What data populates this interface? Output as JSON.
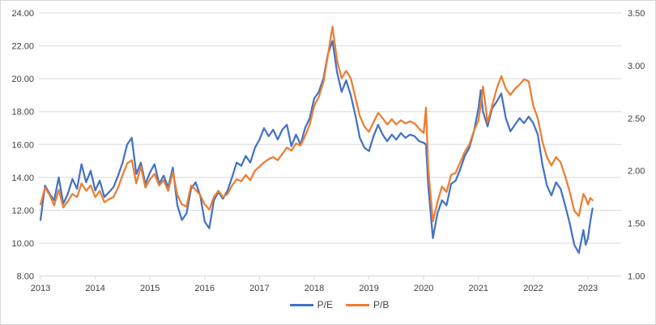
{
  "chart_data": {
    "type": "line",
    "title": "",
    "grid": true,
    "legend_position": "bottom",
    "x_axis": {
      "labels": [
        "2013",
        "2014",
        "2015",
        "2016",
        "2017",
        "2018",
        "2019",
        "2020",
        "2021",
        "2022",
        "2023"
      ]
    },
    "left_axis": {
      "min": 8,
      "max": 24,
      "step": 2,
      "labels": [
        "24.00",
        "22.00",
        "20.00",
        "18.00",
        "16.00",
        "14.00",
        "12.00",
        "10.00",
        "8.00"
      ]
    },
    "right_axis": {
      "min": 1.0,
      "max": 3.5,
      "step": 0.5,
      "labels": [
        "3.50",
        "3.00",
        "2.50",
        "2.00",
        "1.50",
        "1.00"
      ]
    },
    "x": [
      2013.0,
      2013.083,
      2013.167,
      2013.25,
      2013.333,
      2013.417,
      2013.5,
      2013.583,
      2013.667,
      2013.75,
      2013.833,
      2013.917,
      2014.0,
      2014.083,
      2014.167,
      2014.25,
      2014.333,
      2014.417,
      2014.5,
      2014.583,
      2014.667,
      2014.75,
      2014.833,
      2014.917,
      2015.0,
      2015.083,
      2015.167,
      2015.25,
      2015.333,
      2015.417,
      2015.5,
      2015.583,
      2015.667,
      2015.75,
      2015.833,
      2015.917,
      2016.0,
      2016.083,
      2016.167,
      2016.25,
      2016.333,
      2016.417,
      2016.5,
      2016.583,
      2016.667,
      2016.75,
      2016.833,
      2016.917,
      2017.0,
      2017.083,
      2017.167,
      2017.25,
      2017.333,
      2017.417,
      2017.5,
      2017.583,
      2017.667,
      2017.75,
      2017.833,
      2017.917,
      2018.0,
      2018.083,
      2018.167,
      2018.25,
      2018.333,
      2018.417,
      2018.5,
      2018.583,
      2018.667,
      2018.75,
      2018.833,
      2018.917,
      2019.0,
      2019.083,
      2019.167,
      2019.25,
      2019.333,
      2019.417,
      2019.5,
      2019.583,
      2019.667,
      2019.75,
      2019.833,
      2019.917,
      2020.0,
      2020.042,
      2020.083,
      2020.167,
      2020.25,
      2020.333,
      2020.417,
      2020.5,
      2020.583,
      2020.667,
      2020.75,
      2020.833,
      2020.917,
      2021.0,
      2021.042,
      2021.083,
      2021.167,
      2021.25,
      2021.333,
      2021.417,
      2021.5,
      2021.583,
      2021.667,
      2021.75,
      2021.833,
      2021.917,
      2022.0,
      2022.083,
      2022.167,
      2022.25,
      2022.333,
      2022.417,
      2022.5,
      2022.583,
      2022.667,
      2022.75,
      2022.833,
      2022.917,
      2022.958,
      2023.0,
      2023.042,
      2023.083
    ],
    "series": [
      {
        "name": "P/E",
        "axis": "left",
        "color": "#4472C4",
        "values": [
          11.4,
          13.5,
          13.0,
          12.6,
          14.0,
          12.4,
          13.0,
          13.9,
          13.3,
          14.8,
          13.7,
          14.4,
          13.2,
          13.8,
          12.8,
          13.1,
          13.4,
          14.1,
          14.9,
          16.0,
          16.4,
          14.2,
          14.9,
          13.6,
          14.3,
          14.8,
          13.6,
          14.1,
          13.4,
          14.6,
          12.3,
          11.4,
          11.8,
          13.3,
          13.7,
          12.9,
          11.3,
          10.9,
          12.6,
          13.1,
          12.7,
          13.2,
          14.0,
          14.9,
          14.7,
          15.3,
          14.9,
          15.8,
          16.3,
          17.0,
          16.5,
          16.9,
          16.3,
          16.9,
          17.2,
          15.9,
          16.6,
          16.0,
          17.0,
          17.6,
          18.8,
          19.2,
          20.0,
          21.5,
          22.3,
          20.4,
          19.2,
          19.9,
          19.0,
          17.8,
          16.4,
          15.8,
          15.6,
          16.5,
          17.2,
          16.6,
          16.2,
          16.6,
          16.3,
          16.7,
          16.4,
          16.6,
          16.5,
          16.2,
          16.1,
          16.0,
          13.5,
          10.3,
          11.8,
          12.6,
          12.3,
          13.6,
          13.8,
          14.5,
          15.3,
          15.8,
          16.8,
          18.2,
          19.3,
          18.0,
          17.1,
          18.2,
          18.6,
          19.1,
          17.6,
          16.8,
          17.2,
          17.6,
          17.3,
          17.7,
          17.3,
          16.6,
          14.8,
          13.5,
          12.9,
          13.7,
          13.3,
          12.3,
          11.2,
          9.9,
          9.4,
          10.8,
          9.9,
          10.3,
          11.3,
          12.1
        ]
      },
      {
        "name": "P/B",
        "axis": "right",
        "color": "#ED7D31",
        "values": [
          1.68,
          1.84,
          1.77,
          1.67,
          1.82,
          1.65,
          1.71,
          1.78,
          1.75,
          1.88,
          1.81,
          1.86,
          1.75,
          1.81,
          1.7,
          1.73,
          1.75,
          1.84,
          1.96,
          2.07,
          2.1,
          1.88,
          2.04,
          1.84,
          1.92,
          1.97,
          1.86,
          1.91,
          1.81,
          1.99,
          1.77,
          1.68,
          1.66,
          1.86,
          1.82,
          1.77,
          1.68,
          1.63,
          1.75,
          1.81,
          1.75,
          1.78,
          1.86,
          1.92,
          1.9,
          1.96,
          1.91,
          2.0,
          2.04,
          2.08,
          2.11,
          2.13,
          2.1,
          2.16,
          2.22,
          2.19,
          2.26,
          2.24,
          2.33,
          2.44,
          2.62,
          2.7,
          2.84,
          3.1,
          3.37,
          3.05,
          2.88,
          2.95,
          2.88,
          2.7,
          2.52,
          2.42,
          2.37,
          2.46,
          2.55,
          2.5,
          2.44,
          2.49,
          2.44,
          2.48,
          2.45,
          2.47,
          2.45,
          2.4,
          2.36,
          2.6,
          2.02,
          1.52,
          1.7,
          1.85,
          1.8,
          1.96,
          1.98,
          2.08,
          2.18,
          2.25,
          2.38,
          2.48,
          2.62,
          2.8,
          2.46,
          2.62,
          2.78,
          2.9,
          2.78,
          2.72,
          2.78,
          2.82,
          2.87,
          2.85,
          2.62,
          2.5,
          2.28,
          2.13,
          2.05,
          2.13,
          2.08,
          1.95,
          1.8,
          1.62,
          1.57,
          1.78,
          1.74,
          1.68,
          1.74,
          1.72
        ]
      }
    ]
  },
  "colors": {
    "gridline": "#d9d9d9",
    "axis_text": "#404040",
    "background": "#ffffff",
    "pe_line": "#4472C4",
    "pb_line": "#ED7D31"
  },
  "legend": {
    "items": [
      {
        "label": "P/E",
        "color": "#4472C4"
      },
      {
        "label": "P/B",
        "color": "#ED7D31"
      }
    ]
  }
}
